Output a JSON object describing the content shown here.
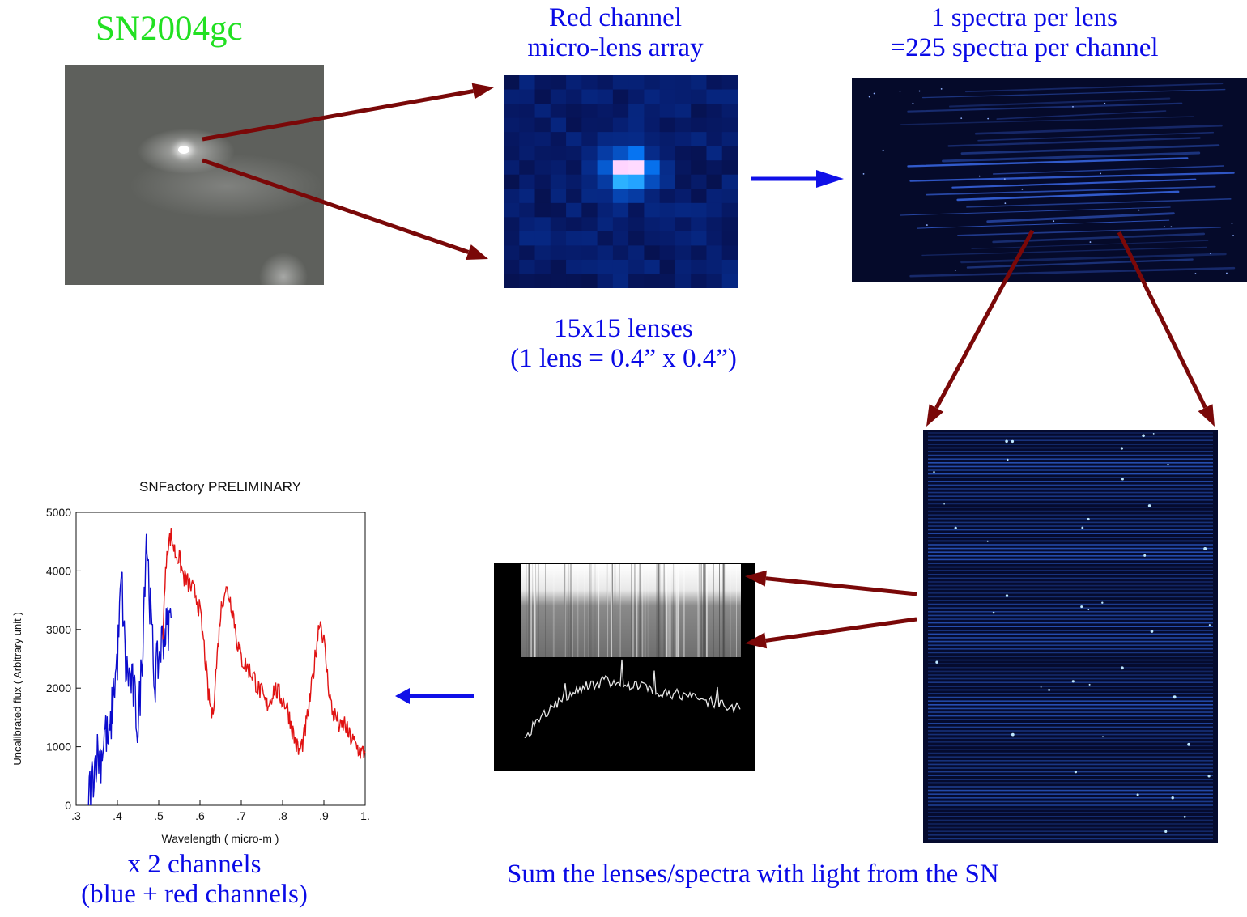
{
  "labels": {
    "sn_name": "SN2004gc",
    "red_channel": [
      "Red channel",
      "micro-lens array"
    ],
    "spectra_per_lens": [
      "1 spectra per lens",
      "=225 spectra per channel"
    ],
    "lenses": [
      "15x15 lenses",
      "(1 lens = 0.4” x 0.4”)"
    ],
    "sum_caption": "Sum the lenses/spectra with light from the SN",
    "channels": [
      "x 2 channels",
      "(blue + red channels)"
    ]
  },
  "colors": {
    "label_blue": "#0a0ae6",
    "label_green": "#22e022",
    "arrow_dark_red": "#7a0808",
    "arrow_blue": "#1010e8",
    "spectrum_blue": "#0b0bcc",
    "spectrum_red": "#e01212"
  },
  "chart_data": {
    "type": "line",
    "title": "SNFactory PRELIMINARY",
    "xlabel": "Wavelength ( micro-m )",
    "ylabel": "Uncalibrated flux ( Arbitrary unit )",
    "xlim": [
      0.3,
      1.0
    ],
    "ylim": [
      0,
      5000
    ],
    "x_ticks": [
      ".3",
      ".4",
      ".5",
      ".6",
      ".7",
      ".8",
      ".9",
      "1."
    ],
    "y_ticks": [
      "0",
      "1000",
      "2000",
      "3000",
      "4000",
      "5000"
    ],
    "grid": false,
    "series": [
      {
        "color": "#0b0bcc",
        "x": [
          0.33,
          0.34,
          0.35,
          0.36,
          0.37,
          0.38,
          0.39,
          0.4,
          0.41,
          0.42,
          0.43,
          0.44,
          0.45,
          0.46,
          0.47,
          0.48,
          0.49,
          0.5,
          0.51,
          0.52,
          0.53
        ],
        "y": [
          200,
          500,
          900,
          800,
          1300,
          1000,
          1900,
          2500,
          3900,
          2300,
          2200,
          1900,
          1300,
          2600,
          4700,
          3300,
          2100,
          2500,
          2900,
          3000,
          3200
        ]
      },
      {
        "color": "#e01212",
        "x": [
          0.51,
          0.52,
          0.53,
          0.54,
          0.55,
          0.56,
          0.57,
          0.58,
          0.59,
          0.6,
          0.61,
          0.62,
          0.63,
          0.64,
          0.65,
          0.66,
          0.67,
          0.68,
          0.69,
          0.7,
          0.71,
          0.72,
          0.73,
          0.74,
          0.75,
          0.76,
          0.77,
          0.78,
          0.79,
          0.8,
          0.81,
          0.82,
          0.83,
          0.84,
          0.85,
          0.86,
          0.87,
          0.88,
          0.89,
          0.9,
          0.91,
          0.92,
          0.93,
          0.94,
          0.95,
          0.96,
          0.97,
          0.98,
          0.99,
          1.0
        ],
        "y": [
          3000,
          4400,
          4600,
          4300,
          4200,
          3900,
          3800,
          3700,
          3600,
          3300,
          2700,
          1900,
          1500,
          2400,
          3300,
          3700,
          3600,
          3300,
          2800,
          2500,
          2400,
          2300,
          2200,
          2000,
          1900,
          1700,
          1800,
          2000,
          1900,
          1800,
          1700,
          1400,
          1100,
          900,
          1100,
          1500,
          2000,
          2600,
          3200,
          2800,
          2100,
          1600,
          1500,
          1300,
          1400,
          1200,
          1100,
          1000,
          900,
          900
        ]
      }
    ]
  }
}
